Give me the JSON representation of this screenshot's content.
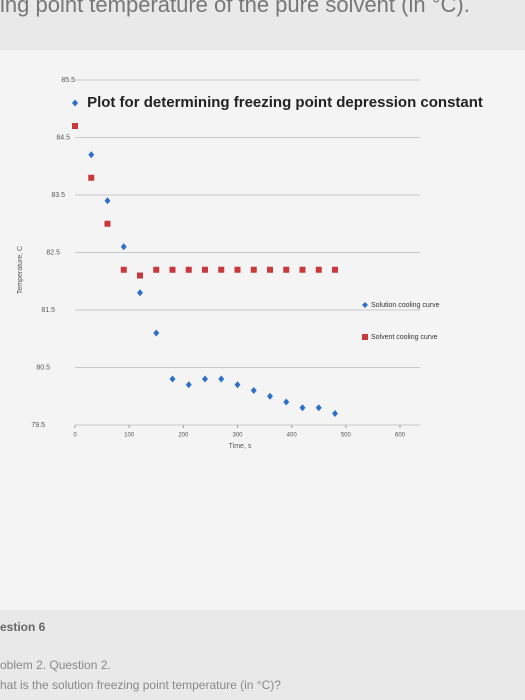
{
  "header": {
    "text": "ing point temperature of the pure solvent (in °C)."
  },
  "chart_data": {
    "type": "scatter",
    "title": "Plot for determining freezing point depression constant",
    "x_label": "Time, s",
    "y_label": "Temperature, C",
    "x": [
      0,
      30,
      60,
      90,
      120,
      150,
      180,
      210,
      240,
      270,
      300,
      330,
      360,
      390,
      420,
      450,
      480
    ],
    "series": [
      {
        "name": "Solution cooling curve",
        "color": "#2e6fc7",
        "marker": "diamond",
        "values": [
          85.1,
          84.2,
          83.4,
          82.6,
          81.8,
          81.1,
          80.3,
          80.2,
          80.3,
          80.3,
          80.2,
          80.1,
          80.0,
          79.9,
          79.8,
          79.8,
          79.7
        ]
      },
      {
        "name": "Solvent cooling curve",
        "color": "#c9383a",
        "marker": "square",
        "values": [
          84.7,
          83.8,
          83.0,
          82.2,
          82.1,
          82.2,
          82.2,
          82.2,
          82.2,
          82.2,
          82.2,
          82.2,
          82.2,
          82.2,
          82.2,
          82.2,
          82.2
        ]
      }
    ],
    "xlim": [
      0,
      600
    ],
    "xticks": [
      0,
      100,
      200,
      300,
      400,
      500,
      600
    ],
    "ylim": [
      79.5,
      85.5
    ],
    "yticks": [
      79.5,
      80.5,
      81.5,
      82.5,
      83.5,
      84.5,
      85.5
    ],
    "grid": true,
    "legend": "right"
  },
  "footer": {
    "section": "estion 6",
    "problem": "oblem 2. Question 2.",
    "question": "hat is the solution freezing point temperature (in °C)?"
  }
}
